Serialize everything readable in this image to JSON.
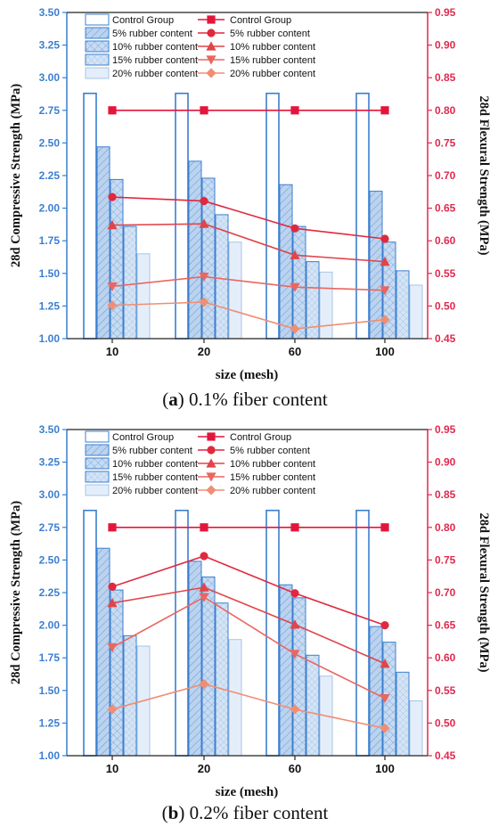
{
  "chart_data": [
    {
      "type": "bar+line",
      "caption_letter": "a",
      "caption_text": "0.1% fiber content",
      "categories": [
        "10",
        "20",
        "60",
        "100"
      ],
      "xlabel": "size (mesh)",
      "ylabel_left": "28d Compressive Strength (MPa)",
      "ylabel_right": "28d Flexural Strength (MPa)",
      "ylim_left": [
        1.0,
        3.5
      ],
      "ylim_right": [
        0.45,
        0.95
      ],
      "yticks_left": [
        "1.00",
        "1.25",
        "1.50",
        "1.75",
        "2.00",
        "2.25",
        "2.50",
        "2.75",
        "3.00",
        "3.25",
        "3.50"
      ],
      "yticks_right": [
        "0.45",
        "0.50",
        "0.55",
        "0.60",
        "0.65",
        "0.70",
        "0.75",
        "0.80",
        "0.85",
        "0.90",
        "0.95"
      ],
      "bar_series": [
        {
          "name": "Control Group",
          "values": [
            2.88,
            2.88,
            2.88,
            2.88
          ]
        },
        {
          "name": "5% rubber content",
          "values": [
            2.47,
            2.36,
            2.18,
            2.13
          ]
        },
        {
          "name": "10% rubber content",
          "values": [
            2.22,
            2.23,
            1.86,
            1.74
          ]
        },
        {
          "name": "15% rubber content",
          "values": [
            1.86,
            1.95,
            1.59,
            1.52
          ]
        },
        {
          "name": "20% rubber content",
          "values": [
            1.65,
            1.74,
            1.51,
            1.41
          ]
        }
      ],
      "line_series": [
        {
          "name": "Control Group",
          "values": [
            0.8,
            0.8,
            0.8,
            0.8
          ]
        },
        {
          "name": "5% rubber content",
          "values": [
            0.667,
            0.661,
            0.619,
            0.603
          ]
        },
        {
          "name": "10% rubber content",
          "values": [
            0.624,
            0.626,
            0.578,
            0.568
          ]
        },
        {
          "name": "15% rubber content",
          "values": [
            0.53,
            0.545,
            0.529,
            0.524
          ]
        },
        {
          "name": "20% rubber content",
          "values": [
            0.501,
            0.506,
            0.465,
            0.479
          ]
        }
      ]
    },
    {
      "type": "bar+line",
      "caption_letter": "b",
      "caption_text": "0.2% fiber content",
      "categories": [
        "10",
        "20",
        "60",
        "100"
      ],
      "xlabel": "size (mesh)",
      "ylabel_left": "28d Compressive Strength (MPa)",
      "ylabel_right": "28d Flexural Strength (MPa)",
      "ylim_left": [
        1.0,
        3.5
      ],
      "ylim_right": [
        0.45,
        0.95
      ],
      "yticks_left": [
        "1.00",
        "1.25",
        "1.50",
        "1.75",
        "2.00",
        "2.25",
        "2.50",
        "2.75",
        "3.00",
        "3.25",
        "3.50"
      ],
      "yticks_right": [
        "0.45",
        "0.50",
        "0.55",
        "0.60",
        "0.65",
        "0.70",
        "0.75",
        "0.80",
        "0.85",
        "0.90",
        "0.95"
      ],
      "bar_series": [
        {
          "name": "Control Group",
          "values": [
            2.88,
            2.88,
            2.88,
            2.88
          ]
        },
        {
          "name": "5% rubber content",
          "values": [
            2.59,
            2.49,
            2.31,
            1.99
          ]
        },
        {
          "name": "10% rubber content",
          "values": [
            2.27,
            2.37,
            2.21,
            1.87
          ]
        },
        {
          "name": "15% rubber content",
          "values": [
            1.92,
            2.17,
            1.77,
            1.64
          ]
        },
        {
          "name": "20% rubber content",
          "values": [
            1.84,
            1.89,
            1.61,
            1.42
          ]
        }
      ],
      "line_series": [
        {
          "name": "Control Group",
          "values": [
            0.8,
            0.8,
            0.8,
            0.8
          ]
        },
        {
          "name": "5% rubber content",
          "values": [
            0.709,
            0.756,
            0.699,
            0.65
          ]
        },
        {
          "name": "10% rubber content",
          "values": [
            0.684,
            0.708,
            0.651,
            0.591
          ]
        },
        {
          "name": "15% rubber content",
          "values": [
            0.616,
            0.693,
            0.606,
            0.538
          ]
        },
        {
          "name": "20% rubber content",
          "values": [
            0.521,
            0.56,
            0.521,
            0.492
          ]
        }
      ]
    }
  ],
  "style": {
    "left_axis_color": "#3b7fd0",
    "right_axis_color": "#e0294e",
    "bar_outline_color": "#3b7fd0",
    "bar_fill_colors": [
      "#ffffff",
      "#bcd3ee",
      "#c8dbf1",
      "#d5e4f5",
      "#e4eefa"
    ],
    "bar_patterns": [
      "none",
      "diag",
      "cross",
      "cross",
      "light"
    ],
    "line_colors": [
      "#e4153b",
      "#e0293e",
      "#e0454a",
      "#ea6660",
      "#f08e73"
    ],
    "marker_shapes": [
      "square",
      "circle",
      "triangle-up",
      "triangle-down",
      "diamond"
    ]
  }
}
